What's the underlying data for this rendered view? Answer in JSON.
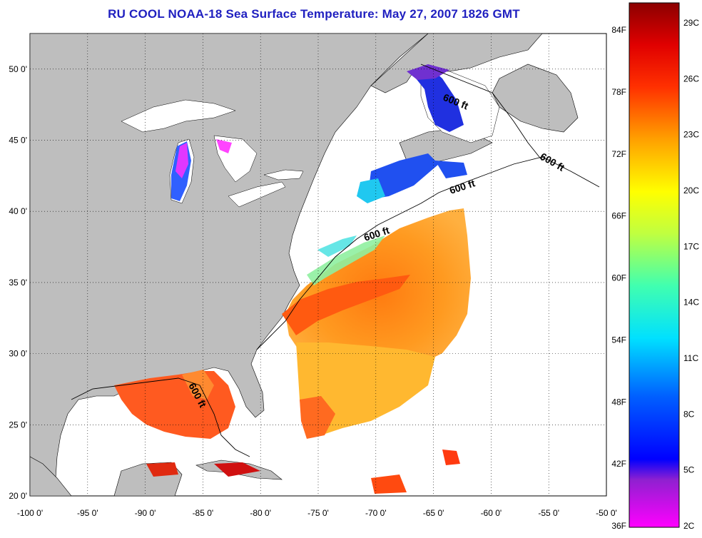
{
  "title": "RU COOL  NOAA-18  Sea Surface Temperature:  May 27, 2007 1826 GMT",
  "map": {
    "lon_range": [
      -100,
      -50
    ],
    "lat_range": [
      20,
      52.5
    ],
    "lon_ticks": [
      "-100 0'",
      "-95 0'",
      "-90 0'",
      "-85 0'",
      "-80 0'",
      "-75 0'",
      "-70 0'",
      "-65 0'",
      "-60 0'",
      "-55 0'",
      "-50 0'"
    ],
    "lat_ticks": [
      "20 0'",
      "25 0'",
      "30 0'",
      "35 0'",
      "40 0'",
      "45 0'",
      "50 0'"
    ],
    "contour_label": "600 ft",
    "land_color": "#bebebe",
    "grid": "dotted"
  },
  "colorbar": {
    "fahrenheit_labels": [
      "84F",
      "78F",
      "72F",
      "66F",
      "60F",
      "54F",
      "48F",
      "42F",
      "36F"
    ],
    "celsius_labels": [
      "29C",
      "26C",
      "23C",
      "20C",
      "17C",
      "14C",
      "11C",
      "8C",
      "5C",
      "2C"
    ],
    "colors": [
      "#8b0000",
      "#ff0000",
      "#ff8000",
      "#ffff00",
      "#80ff80",
      "#00ffff",
      "#0080ff",
      "#0000ff",
      "#8000c0",
      "#ff00ff"
    ]
  }
}
